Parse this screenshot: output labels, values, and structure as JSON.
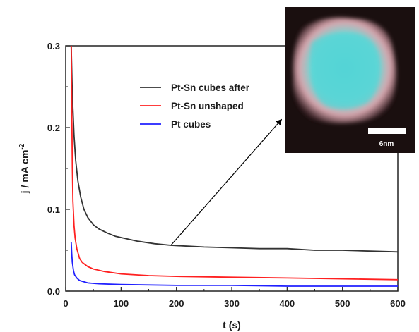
{
  "chart_data": {
    "type": "line",
    "xlabel": "t (s)",
    "ylabel": "j / mA cm",
    "ylabel_exponent": "-2",
    "xlim": [
      0,
      600
    ],
    "ylim": [
      0,
      0.3
    ],
    "xticks": [
      0,
      100,
      200,
      300,
      400,
      500,
      600
    ],
    "yticks": [
      0.0,
      0.1,
      0.2,
      0.3
    ],
    "xtick_labels": [
      "0",
      "100",
      "200",
      "300",
      "400",
      "500",
      "600"
    ],
    "ytick_labels": [
      "0.0",
      "0.1",
      "0.2",
      "0.3"
    ],
    "grid": false,
    "legend_position": "upper-center",
    "series": [
      {
        "name": "Pt-Sn cubes after",
        "color": "#333333",
        "x": [
          10,
          12,
          15,
          18,
          22,
          27,
          33,
          40,
          50,
          60,
          75,
          90,
          110,
          130,
          160,
          190,
          220,
          250,
          300,
          350,
          400,
          450,
          500,
          550,
          600
        ],
        "y": [
          0.3,
          0.24,
          0.19,
          0.16,
          0.135,
          0.115,
          0.1,
          0.09,
          0.081,
          0.076,
          0.071,
          0.067,
          0.064,
          0.061,
          0.058,
          0.056,
          0.055,
          0.054,
          0.053,
          0.052,
          0.052,
          0.05,
          0.05,
          0.049,
          0.048
        ]
      },
      {
        "name": "Pt-Sn unshaped",
        "color": "#ff2020",
        "x": [
          10,
          11,
          12,
          13,
          15,
          17,
          20,
          25,
          30,
          40,
          50,
          70,
          100,
          150,
          200,
          300,
          400,
          500,
          600
        ],
        "y": [
          0.3,
          0.22,
          0.15,
          0.11,
          0.08,
          0.065,
          0.052,
          0.04,
          0.035,
          0.03,
          0.027,
          0.024,
          0.021,
          0.019,
          0.018,
          0.017,
          0.016,
          0.015,
          0.014
        ]
      },
      {
        "name": "Pt cubes",
        "color": "#2020ff",
        "x": [
          10,
          11,
          12,
          14,
          16,
          20,
          25,
          30,
          40,
          60,
          100,
          200,
          300,
          400,
          500,
          600
        ],
        "y": [
          0.06,
          0.045,
          0.035,
          0.025,
          0.02,
          0.016,
          0.013,
          0.012,
          0.01,
          0.009,
          0.008,
          0.007,
          0.007,
          0.006,
          0.006,
          0.006
        ]
      }
    ],
    "annotation": {
      "from": [
        190,
        0.056
      ],
      "to": [
        390,
        0.21
      ]
    }
  },
  "inset": {
    "scale_label": "6nm",
    "colors": {
      "background": "#1a0f0f",
      "particle_cyan": "#5fd8d8",
      "particle_pink": "#e8a0a8"
    }
  }
}
